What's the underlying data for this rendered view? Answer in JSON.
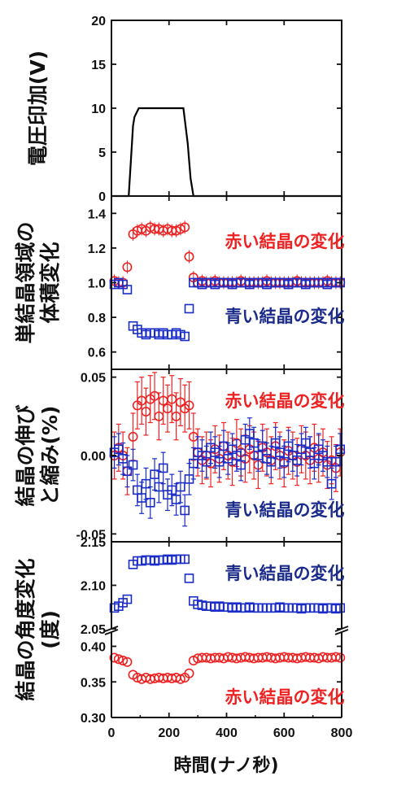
{
  "colors": {
    "red": "#ee2222",
    "blue": "#1a2cc8",
    "blue_text": "#1b2b8a",
    "axis": "#111111",
    "line": "#000000"
  },
  "xaxis": {
    "label": "時間(ナノ秒)",
    "lim": [
      0,
      800
    ],
    "ticks": [
      "0",
      "200",
      "400",
      "600",
      "800"
    ]
  },
  "chart_data": [
    {
      "type": "line",
      "ylabel": "電圧印加(V)",
      "ylim": [
        0,
        20
      ],
      "yticks": [
        "0",
        "5",
        "10",
        "15",
        "20"
      ],
      "series": [
        {
          "color": "#000000",
          "x": [
            0,
            60,
            75,
            80,
            95,
            250,
            265,
            275,
            285,
            800
          ],
          "y": [
            0,
            0,
            8,
            9,
            10,
            10,
            6,
            2,
            0,
            0
          ]
        }
      ]
    },
    {
      "type": "scatter",
      "ylabel": [
        "単結晶領域の",
        "体積変化"
      ],
      "ylim": [
        0.5,
        1.5
      ],
      "yticks": [
        "0.6",
        "0.8",
        "1.0",
        "1.2",
        "1.4"
      ],
      "series": [
        {
          "name": "赤い結晶の変化",
          "marker": "circle",
          "color": "#ee2222",
          "x": [
            10,
            25,
            40,
            55,
            75,
            90,
            105,
            120,
            135,
            150,
            165,
            180,
            195,
            210,
            225,
            240,
            255,
            270,
            285,
            300,
            315,
            330,
            345,
            360,
            375,
            390,
            405,
            420,
            435,
            450,
            465,
            480,
            495,
            510,
            525,
            540,
            555,
            570,
            585,
            600,
            615,
            630,
            645,
            660,
            675,
            690,
            705,
            720,
            735,
            750,
            765,
            780,
            795
          ],
          "y": [
            1.01,
            1.0,
            1.0,
            1.09,
            1.28,
            1.3,
            1.31,
            1.3,
            1.32,
            1.31,
            1.31,
            1.3,
            1.31,
            1.3,
            1.3,
            1.31,
            1.32,
            1.15,
            1.03,
            1.0,
            1.01,
            1.0,
            1.0,
            1.01,
            1.0,
            1.0,
            1.0,
            1.0,
            1.0,
            1.01,
            1.0,
            1.0,
            1.0,
            1.0,
            1.0,
            1.01,
            1.0,
            1.0,
            1.0,
            1.0,
            1.0,
            1.0,
            1.01,
            1.0,
            1.0,
            1.0,
            1.0,
            1.0,
            1.0,
            1.01,
            1.0,
            1.0,
            1.0
          ]
        },
        {
          "name": "青い結晶の変化",
          "marker": "square",
          "color": "#1a2cc8",
          "x": [
            10,
            25,
            40,
            55,
            75,
            90,
            105,
            120,
            135,
            150,
            165,
            180,
            195,
            210,
            225,
            240,
            255,
            270,
            285,
            300,
            315,
            330,
            345,
            360,
            375,
            390,
            405,
            420,
            435,
            450,
            465,
            480,
            495,
            510,
            525,
            540,
            555,
            570,
            585,
            600,
            615,
            630,
            645,
            660,
            675,
            690,
            705,
            720,
            735,
            750,
            765,
            780,
            795
          ],
          "y": [
            0.99,
            1.0,
            0.99,
            0.96,
            0.75,
            0.73,
            0.71,
            0.7,
            0.71,
            0.71,
            0.7,
            0.71,
            0.7,
            0.7,
            0.71,
            0.7,
            0.69,
            0.85,
            1.0,
            1.0,
            0.99,
            1.0,
            1.0,
            0.99,
            1.0,
            1.0,
            1.0,
            0.99,
            1.0,
            1.0,
            1.0,
            0.99,
            1.0,
            1.0,
            1.0,
            0.99,
            1.0,
            1.0,
            1.0,
            1.0,
            0.99,
            1.0,
            1.0,
            1.0,
            0.99,
            1.0,
            1.0,
            1.0,
            1.0,
            0.99,
            1.0,
            1.0,
            1.0
          ]
        }
      ],
      "annotations": [
        "赤い結晶の変化",
        "青い結晶の変化"
      ]
    },
    {
      "type": "scatter",
      "ylabel": [
        "結晶の伸び",
        "と縮み(%)"
      ],
      "ylim": [
        -0.055,
        0.055
      ],
      "yticks": [
        "-0.05",
        "0.00",
        "0.05"
      ],
      "series": [
        {
          "name": "赤い結晶の変化",
          "marker": "circle",
          "color": "#ee2222",
          "error": 0.015,
          "x": [
            10,
            25,
            40,
            55,
            75,
            90,
            105,
            120,
            135,
            150,
            165,
            180,
            195,
            210,
            225,
            240,
            255,
            270,
            285,
            300,
            315,
            330,
            345,
            360,
            375,
            390,
            405,
            420,
            435,
            450,
            465,
            480,
            495,
            510,
            525,
            540,
            555,
            570,
            585,
            600,
            615,
            630,
            645,
            660,
            675,
            690,
            705,
            720,
            735,
            750,
            765,
            780,
            795
          ],
          "y": [
            0.0,
            0.005,
            0.0,
            -0.01,
            0.012,
            0.032,
            0.035,
            0.028,
            0.036,
            0.038,
            0.025,
            0.035,
            0.03,
            0.036,
            0.025,
            0.034,
            0.03,
            0.032,
            0.012,
            0.002,
            -0.003,
            0.0,
            -0.005,
            0.004,
            -0.002,
            0.006,
            0.0,
            -0.004,
            0.008,
            0.002,
            -0.002,
            0.004,
            0.0,
            -0.006,
            0.005,
            0.002,
            -0.003,
            0.006,
            0.0,
            -0.005,
            0.003,
            0.0,
            -0.004,
            0.004,
            0.0,
            -0.003,
            0.005,
            -0.002,
            0.002,
            -0.006,
            -0.003,
            -0.008,
            0.002
          ]
        },
        {
          "name": "青い結晶の変化",
          "marker": "square",
          "color": "#1a2cc8",
          "error": 0.01,
          "x": [
            10,
            25,
            40,
            55,
            75,
            90,
            105,
            120,
            135,
            150,
            165,
            180,
            195,
            210,
            225,
            240,
            255,
            270,
            285,
            300,
            315,
            330,
            345,
            360,
            375,
            390,
            405,
            420,
            435,
            450,
            465,
            480,
            495,
            510,
            525,
            540,
            555,
            570,
            585,
            600,
            615,
            630,
            645,
            660,
            675,
            690,
            705,
            720,
            735,
            750,
            765,
            780,
            795
          ],
          "y": [
            0.002,
            0.004,
            -0.002,
            -0.01,
            -0.006,
            -0.022,
            -0.027,
            -0.018,
            -0.03,
            -0.012,
            -0.02,
            -0.008,
            -0.025,
            -0.022,
            -0.028,
            -0.02,
            -0.035,
            -0.015,
            -0.005,
            0.002,
            0.0,
            -0.004,
            0.005,
            0.002,
            -0.004,
            0.006,
            -0.002,
            0.004,
            0.0,
            -0.006,
            0.01,
            0.014,
            0.008,
            0.0,
            0.006,
            -0.002,
            -0.004,
            0.008,
            0.002,
            -0.004,
            0.006,
            0.0,
            -0.003,
            0.004,
            0.008,
            0.002,
            -0.005,
            0.004,
            0.0,
            -0.004,
            -0.018,
            -0.004,
            0.004
          ]
        }
      ],
      "annotations": [
        "赤い結晶の変化",
        "青い結晶の変化"
      ]
    },
    {
      "type": "scatter",
      "ylabel": [
        "結晶の角度変化",
        "(度)"
      ],
      "broken_axis": true,
      "upper": {
        "ylim": [
          2.05,
          2.15
        ],
        "yticks": [
          "2.05",
          "2.10",
          "2.15"
        ]
      },
      "lower": {
        "ylim": [
          0.3,
          0.42
        ],
        "yticks": [
          "0.30",
          "0.35",
          "0.40"
        ]
      },
      "series": [
        {
          "name": "青い結晶の変化",
          "marker": "square",
          "color": "#1a2cc8",
          "segment": "upper",
          "x": [
            10,
            25,
            40,
            55,
            75,
            90,
            105,
            120,
            135,
            150,
            165,
            180,
            195,
            210,
            225,
            240,
            255,
            270,
            285,
            300,
            315,
            330,
            345,
            360,
            375,
            390,
            405,
            420,
            435,
            450,
            465,
            480,
            495,
            510,
            525,
            540,
            555,
            570,
            585,
            600,
            615,
            630,
            645,
            660,
            675,
            690,
            705,
            720,
            735,
            750,
            765,
            780,
            795
          ],
          "y": [
            2.074,
            2.076,
            2.08,
            2.084,
            2.124,
            2.128,
            2.128,
            2.129,
            2.129,
            2.128,
            2.129,
            2.129,
            2.13,
            2.129,
            2.13,
            2.13,
            2.13,
            2.108,
            2.082,
            2.078,
            2.077,
            2.076,
            2.076,
            2.075,
            2.076,
            2.075,
            2.075,
            2.074,
            2.075,
            2.074,
            2.074,
            2.075,
            2.074,
            2.074,
            2.074,
            2.074,
            2.074,
            2.074,
            2.075,
            2.074,
            2.074,
            2.074,
            2.074,
            2.073,
            2.074,
            2.074,
            2.074,
            2.074,
            2.073,
            2.074,
            2.074,
            2.073,
            2.074
          ]
        },
        {
          "name": "赤い結晶の変化",
          "marker": "circle",
          "color": "#ee2222",
          "segment": "lower",
          "x": [
            10,
            25,
            40,
            55,
            75,
            90,
            105,
            120,
            135,
            150,
            165,
            180,
            195,
            210,
            225,
            240,
            255,
            270,
            285,
            300,
            315,
            330,
            345,
            360,
            375,
            390,
            405,
            420,
            435,
            450,
            465,
            480,
            495,
            510,
            525,
            540,
            555,
            570,
            585,
            600,
            615,
            630,
            645,
            660,
            675,
            690,
            705,
            720,
            735,
            750,
            765,
            780,
            795
          ],
          "y": [
            0.384,
            0.382,
            0.38,
            0.378,
            0.36,
            0.356,
            0.354,
            0.356,
            0.354,
            0.355,
            0.356,
            0.355,
            0.356,
            0.355,
            0.356,
            0.354,
            0.356,
            0.362,
            0.38,
            0.383,
            0.384,
            0.384,
            0.383,
            0.384,
            0.384,
            0.383,
            0.385,
            0.384,
            0.383,
            0.384,
            0.385,
            0.384,
            0.383,
            0.384,
            0.384,
            0.385,
            0.384,
            0.383,
            0.384,
            0.385,
            0.384,
            0.384,
            0.383,
            0.384,
            0.385,
            0.384,
            0.384,
            0.383,
            0.385,
            0.384,
            0.384,
            0.385,
            0.384
          ]
        }
      ],
      "annotations": [
        "青い結晶の変化",
        "赤い結晶の変化"
      ]
    }
  ]
}
